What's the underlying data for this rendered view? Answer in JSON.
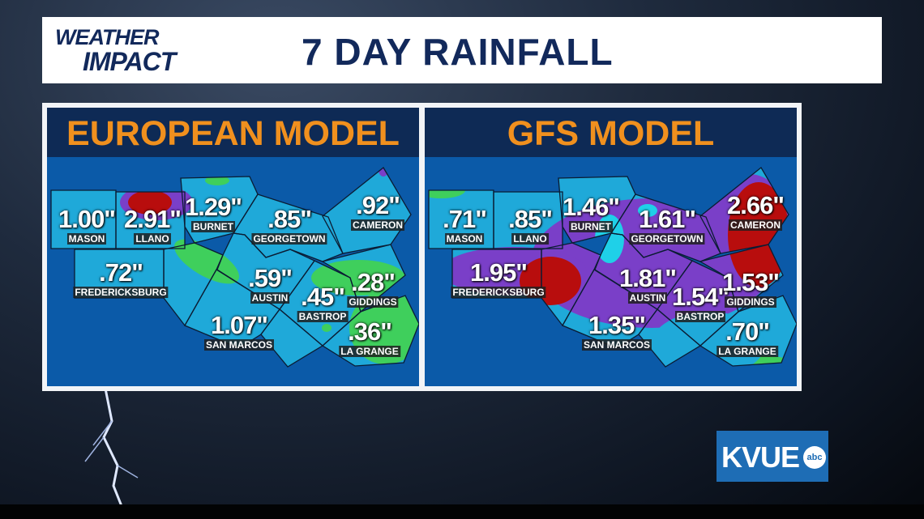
{
  "header": {
    "logo_line1": "WEATHER",
    "logo_line2": "IMPACT",
    "title": "7 DAY RAINFALL"
  },
  "colors": {
    "title_navy": "#12295b",
    "panel_title_orange": "#f0901e",
    "map_blue": "#0b5aa8",
    "rain_low_green": "#3fcf5c",
    "rain_mid_cyan": "#1fa9d9",
    "rain_high_purple": "#7a3fc8",
    "rain_very_high_red": "#b80d0d"
  },
  "models": [
    {
      "title": "EUROPEAN MODEL",
      "cities": [
        {
          "name": "MASON",
          "value": "1.00\""
        },
        {
          "name": "LLANO",
          "value": "2.91\""
        },
        {
          "name": "BURNET",
          "value": "1.29\""
        },
        {
          "name": "GEORGETOWN",
          "value": ".85\""
        },
        {
          "name": "CAMERON",
          "value": ".92\""
        },
        {
          "name": "FREDERICKSBURG",
          "value": ".72\""
        },
        {
          "name": "AUSTIN",
          "value": ".59\""
        },
        {
          "name": "BASTROP",
          "value": ".45\""
        },
        {
          "name": "GIDDINGS",
          "value": ".28\""
        },
        {
          "name": "SAN MARCOS",
          "value": "1.07\""
        },
        {
          "name": "LA GRANGE",
          "value": ".36\""
        }
      ]
    },
    {
      "title": "GFS MODEL",
      "cities": [
        {
          "name": "MASON",
          "value": ".71\""
        },
        {
          "name": "LLANO",
          "value": ".85\""
        },
        {
          "name": "BURNET",
          "value": "1.46\""
        },
        {
          "name": "GEORGETOWN",
          "value": "1.61\""
        },
        {
          "name": "CAMERON",
          "value": "2.66\""
        },
        {
          "name": "FREDERICKSBURG",
          "value": "1.95\""
        },
        {
          "name": "AUSTIN",
          "value": "1.81\""
        },
        {
          "name": "BASTROP",
          "value": "1.54\""
        },
        {
          "name": "GIDDINGS",
          "value": "1.53\""
        },
        {
          "name": "SAN MARCOS",
          "value": "1.35\""
        },
        {
          "name": "LA GRANGE",
          "value": ".70\""
        }
      ]
    }
  ],
  "station_logo": {
    "text": "KVUE",
    "network": "abc"
  }
}
